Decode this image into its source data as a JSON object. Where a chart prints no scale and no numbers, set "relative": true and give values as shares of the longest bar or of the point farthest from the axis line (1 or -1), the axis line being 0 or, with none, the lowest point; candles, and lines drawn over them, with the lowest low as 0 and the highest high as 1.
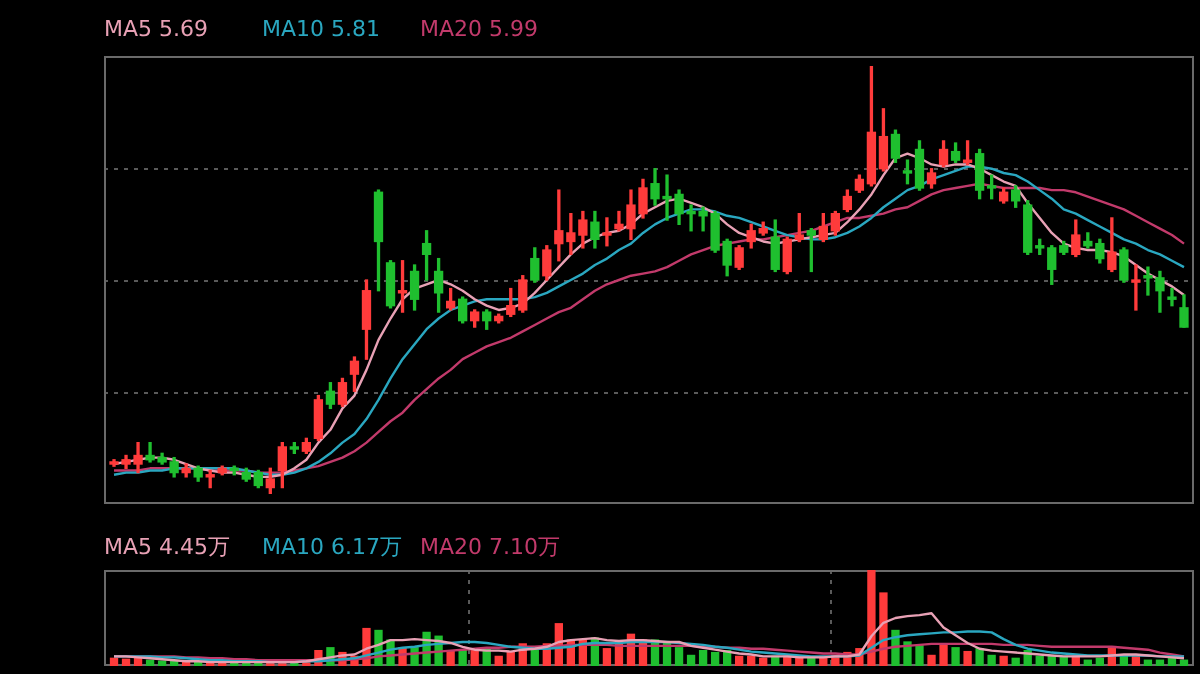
{
  "chart_data": [
    {
      "type": "candlestick",
      "relative": true,
      "grid": "y",
      "legend": "top left",
      "marker": "none",
      "categories": [
        null,
        null,
        null,
        null,
        null,
        null,
        null,
        null,
        null,
        null,
        null,
        null,
        null,
        null,
        null,
        null,
        null,
        null,
        null,
        null,
        null,
        null,
        null,
        null,
        null,
        null,
        null,
        null,
        null,
        null,
        null,
        null,
        null,
        null,
        null,
        null,
        null,
        null,
        null,
        null,
        null,
        null,
        null,
        null,
        null,
        null,
        null,
        null,
        null,
        null,
        null,
        null,
        null,
        null,
        null,
        null,
        null,
        null,
        null,
        null,
        null,
        null,
        null,
        null,
        null,
        null,
        null,
        null,
        null,
        null,
        null,
        null,
        null,
        null,
        null,
        null,
        null,
        null,
        null,
        null,
        null,
        null,
        null,
        null,
        null,
        null,
        null,
        null,
        null,
        null
      ],
      "ohlc": [
        [
          0.07,
          0.08,
          0.065,
          0.075
        ],
        [
          0.07,
          0.09,
          0.06,
          0.08
        ],
        [
          0.07,
          0.12,
          0.05,
          0.09
        ],
        [
          0.09,
          0.12,
          0.075,
          0.08
        ],
        [
          0.085,
          0.095,
          0.07,
          0.075
        ],
        [
          0.075,
          0.085,
          0.04,
          0.05
        ],
        [
          0.05,
          0.07,
          0.04,
          0.06
        ],
        [
          0.06,
          0.065,
          0.03,
          0.04
        ],
        [
          0.04,
          0.055,
          0.015,
          0.045
        ],
        [
          0.05,
          0.065,
          0.045,
          0.06
        ],
        [
          0.06,
          0.065,
          0.045,
          0.055
        ],
        [
          0.05,
          0.06,
          0.03,
          0.035
        ],
        [
          0.05,
          0.055,
          0.015,
          0.02
        ],
        [
          0.015,
          0.06,
          0,
          0.035
        ],
        [
          0.055,
          0.12,
          0.015,
          0.11
        ],
        [
          0.11,
          0.12,
          0.095,
          0.105
        ],
        [
          0.1,
          0.13,
          0.095,
          0.12
        ],
        [
          0.13,
          0.23,
          0.125,
          0.22
        ],
        [
          0.24,
          0.26,
          0.2,
          0.21
        ],
        [
          0.21,
          0.27,
          0.205,
          0.26
        ],
        [
          0.28,
          0.32,
          0.24,
          0.31
        ],
        [
          0.385,
          0.5,
          0.315,
          0.475
        ],
        [
          0.705,
          0.71,
          0.475,
          0.59
        ],
        [
          0.54,
          0.545,
          0.435,
          0.44
        ],
        [
          0.47,
          0.545,
          0.425,
          0.475
        ],
        [
          0.52,
          0.535,
          0.43,
          0.455
        ],
        [
          0.585,
          0.615,
          0.5,
          0.56
        ],
        [
          0.52,
          0.55,
          0.425,
          0.47
        ],
        [
          0.435,
          0.48,
          0.43,
          0.45
        ],
        [
          0.455,
          0.46,
          0.4,
          0.405
        ],
        [
          0.405,
          0.43,
          0.39,
          0.425
        ],
        [
          0.425,
          0.43,
          0.385,
          0.405
        ],
        [
          0.405,
          0.42,
          0.4,
          0.415
        ],
        [
          0.42,
          0.48,
          0.415,
          0.44
        ],
        [
          0.43,
          0.51,
          0.425,
          0.5
        ],
        [
          0.55,
          0.575,
          0.495,
          0.5
        ],
        [
          0.51,
          0.58,
          0.5,
          0.57
        ],
        [
          0.585,
          0.71,
          0.545,
          0.615
        ],
        [
          0.59,
          0.655,
          0.56,
          0.61
        ],
        [
          0.605,
          0.66,
          0.575,
          0.64
        ],
        [
          0.635,
          0.66,
          0.575,
          0.595
        ],
        [
          0.605,
          0.645,
          0.58,
          0.61
        ],
        [
          0.62,
          0.66,
          0.615,
          0.63
        ],
        [
          0.62,
          0.71,
          0.595,
          0.675
        ],
        [
          0.655,
          0.735,
          0.645,
          0.715
        ],
        [
          0.725,
          0.76,
          0.675,
          0.69
        ],
        [
          0.695,
          0.745,
          0.64,
          0.69
        ],
        [
          0.7,
          0.71,
          0.63,
          0.655
        ],
        [
          0.66,
          0.675,
          0.615,
          0.655
        ],
        [
          0.66,
          0.67,
          0.615,
          0.65
        ],
        [
          0.655,
          0.66,
          0.565,
          0.57
        ],
        [
          0.59,
          0.595,
          0.51,
          0.535
        ],
        [
          0.53,
          0.58,
          0.525,
          0.575
        ],
        [
          0.59,
          0.63,
          0.575,
          0.615
        ],
        [
          0.61,
          0.635,
          0.605,
          0.62
        ],
        [
          0.6,
          0.64,
          0.52,
          0.525
        ],
        [
          0.52,
          0.6,
          0.515,
          0.595
        ],
        [
          0.595,
          0.655,
          0.59,
          0.605
        ],
        [
          0.615,
          0.62,
          0.52,
          0.605
        ],
        [
          0.595,
          0.655,
          0.59,
          0.625
        ],
        [
          0.615,
          0.66,
          0.605,
          0.655
        ],
        [
          0.665,
          0.71,
          0.66,
          0.695
        ],
        [
          0.71,
          0.745,
          0.705,
          0.735
        ],
        [
          0.725,
          1,
          0.72,
          0.845
        ],
        [
          0.76,
          0.9,
          0.755,
          0.835
        ],
        [
          0.84,
          0.85,
          0.775,
          0.785
        ],
        [
          0.755,
          0.78,
          0.725,
          0.75
        ],
        [
          0.805,
          0.825,
          0.71,
          0.715
        ],
        [
          0.725,
          0.76,
          0.715,
          0.75
        ],
        [
          0.77,
          0.825,
          0.765,
          0.805
        ],
        [
          0.8,
          0.82,
          0.775,
          0.78
        ],
        [
          0.775,
          0.825,
          0.77,
          0.78
        ],
        [
          0.795,
          0.805,
          0.69,
          0.71
        ],
        [
          0.72,
          0.745,
          0.69,
          0.715
        ],
        [
          0.685,
          0.715,
          0.68,
          0.705
        ],
        [
          0.71,
          0.72,
          0.67,
          0.685
        ],
        [
          0.675,
          0.685,
          0.56,
          0.565
        ],
        [
          0.58,
          0.595,
          0.56,
          0.575
        ],
        [
          0.575,
          0.58,
          0.49,
          0.525
        ],
        [
          0.58,
          0.59,
          0.56,
          0.565
        ],
        [
          0.56,
          0.64,
          0.555,
          0.605
        ],
        [
          0.59,
          0.61,
          0.575,
          0.58
        ],
        [
          0.585,
          0.595,
          0.54,
          0.55
        ],
        [
          0.525,
          0.645,
          0.52,
          0.565
        ],
        [
          0.57,
          0.575,
          0.495,
          0.5
        ],
        [
          0.495,
          0.535,
          0.43,
          0.5
        ],
        [
          0.51,
          0.53,
          0.465,
          0.505
        ],
        [
          0.505,
          0.52,
          0.425,
          0.475
        ],
        [
          0.46,
          0.48,
          0.44,
          0.455
        ],
        [
          0.435,
          0.465,
          0.39,
          0.39
        ]
      ],
      "colors": [
        "#ff3b3b",
        "#ff3b3b",
        "#ff3b3b",
        "#1fbf2f",
        "#1fbf2f",
        "#1fbf2f",
        "#ff3b3b",
        "#1fbf2f",
        "#ff3b3b",
        "#ff3b3b",
        "#1fbf2f",
        "#1fbf2f",
        "#1fbf2f",
        "#ff3b3b",
        "#ff3b3b",
        "#1fbf2f",
        "#ff3b3b",
        "#ff3b3b",
        "#1fbf2f",
        "#ff3b3b",
        "#ff3b3b",
        "#ff3b3b",
        "#1fbf2f",
        "#1fbf2f",
        "#ff3b3b",
        "#1fbf2f",
        "#1fbf2f",
        "#1fbf2f",
        "#ff3b3b",
        "#1fbf2f",
        "#ff3b3b",
        "#1fbf2f",
        "#ff3b3b",
        "#ff3b3b",
        "#ff3b3b",
        "#1fbf2f",
        "#ff3b3b",
        "#ff3b3b",
        "#ff3b3b",
        "#ff3b3b",
        "#1fbf2f",
        "#ff3b3b",
        "#ff3b3b",
        "#ff3b3b",
        "#ff3b3b",
        "#1fbf2f",
        "#1fbf2f",
        "#1fbf2f",
        "#1fbf2f",
        "#1fbf2f",
        "#1fbf2f",
        "#1fbf2f",
        "#ff3b3b",
        "#ff3b3b",
        "#ff3b3b",
        "#1fbf2f",
        "#ff3b3b",
        "#ff3b3b",
        "#1fbf2f",
        "#ff3b3b",
        "#ff3b3b",
        "#ff3b3b",
        "#ff3b3b",
        "#ff3b3b",
        "#ff3b3b",
        "#1fbf2f",
        "#1fbf2f",
        "#1fbf2f",
        "#ff3b3b",
        "#ff3b3b",
        "#1fbf2f",
        "#ff3b3b",
        "#1fbf2f",
        "#1fbf2f",
        "#ff3b3b",
        "#1fbf2f",
        "#1fbf2f",
        "#1fbf2f",
        "#1fbf2f",
        "#1fbf2f",
        "#ff3b3b",
        "#1fbf2f",
        "#1fbf2f",
        "#ff3b3b",
        "#1fbf2f",
        "#ff3b3b",
        "#1fbf2f",
        "#1fbf2f",
        "#1fbf2f",
        "#1fbf2f"
      ],
      "series": [
        {
          "name": "MA5 5.69",
          "type": "line",
          "color": "#e8a1b5",
          "values": [
            0.07,
            0.075,
            0.08,
            0.085,
            0.085,
            0.08,
            0.07,
            0.06,
            0.055,
            0.05,
            0.05,
            0.045,
            0.04,
            0.04,
            0.045,
            0.06,
            0.08,
            0.12,
            0.15,
            0.2,
            0.23,
            0.29,
            0.36,
            0.41,
            0.455,
            0.48,
            0.49,
            0.5,
            0.49,
            0.475,
            0.455,
            0.44,
            0.43,
            0.435,
            0.445,
            0.47,
            0.5,
            0.53,
            0.56,
            0.585,
            0.6,
            0.61,
            0.615,
            0.63,
            0.655,
            0.67,
            0.685,
            0.69,
            0.68,
            0.67,
            0.655,
            0.63,
            0.61,
            0.6,
            0.59,
            0.585,
            0.59,
            0.595,
            0.6,
            0.605,
            0.61,
            0.635,
            0.665,
            0.7,
            0.745,
            0.785,
            0.795,
            0.785,
            0.77,
            0.765,
            0.77,
            0.77,
            0.76,
            0.745,
            0.73,
            0.72,
            0.68,
            0.645,
            0.61,
            0.585,
            0.575,
            0.57,
            0.57,
            0.565,
            0.555,
            0.535,
            0.515,
            0.5,
            0.485,
            0.465
          ]
        },
        {
          "name": "MA10 5.81",
          "type": "line",
          "color": "#2aa7c0",
          "values": [
            0.045,
            0.05,
            0.05,
            0.055,
            0.055,
            0.06,
            0.06,
            0.06,
            0.06,
            0.06,
            0.06,
            0.055,
            0.05,
            0.045,
            0.045,
            0.05,
            0.06,
            0.075,
            0.095,
            0.12,
            0.14,
            0.175,
            0.22,
            0.27,
            0.315,
            0.35,
            0.385,
            0.41,
            0.43,
            0.44,
            0.45,
            0.455,
            0.455,
            0.455,
            0.455,
            0.46,
            0.47,
            0.485,
            0.5,
            0.515,
            0.535,
            0.55,
            0.57,
            0.585,
            0.61,
            0.63,
            0.645,
            0.655,
            0.665,
            0.665,
            0.66,
            0.65,
            0.645,
            0.635,
            0.625,
            0.615,
            0.605,
            0.6,
            0.595,
            0.595,
            0.6,
            0.61,
            0.625,
            0.645,
            0.67,
            0.69,
            0.71,
            0.72,
            0.735,
            0.745,
            0.755,
            0.765,
            0.765,
            0.76,
            0.75,
            0.745,
            0.73,
            0.71,
            0.69,
            0.665,
            0.655,
            0.64,
            0.625,
            0.61,
            0.595,
            0.585,
            0.57,
            0.56,
            0.545,
            0.53
          ]
        },
        {
          "name": "MA20 5.99",
          "type": "line",
          "color": "#c23a6b",
          "values": [
            0.055,
            0.055,
            0.055,
            0.06,
            0.06,
            0.06,
            0.06,
            0.06,
            0.055,
            0.055,
            0.055,
            0.055,
            0.05,
            0.05,
            0.05,
            0.055,
            0.06,
            0.065,
            0.075,
            0.085,
            0.1,
            0.12,
            0.145,
            0.17,
            0.19,
            0.22,
            0.245,
            0.27,
            0.29,
            0.315,
            0.33,
            0.345,
            0.355,
            0.365,
            0.38,
            0.395,
            0.41,
            0.425,
            0.435,
            0.455,
            0.475,
            0.49,
            0.5,
            0.51,
            0.515,
            0.52,
            0.53,
            0.545,
            0.56,
            0.57,
            0.58,
            0.585,
            0.59,
            0.595,
            0.595,
            0.6,
            0.605,
            0.61,
            0.615,
            0.625,
            0.635,
            0.645,
            0.645,
            0.65,
            0.655,
            0.665,
            0.67,
            0.685,
            0.7,
            0.71,
            0.715,
            0.72,
            0.725,
            0.72,
            0.715,
            0.715,
            0.715,
            0.715,
            0.71,
            0.71,
            0.705,
            0.695,
            0.685,
            0.675,
            0.665,
            0.65,
            0.635,
            0.62,
            0.605,
            0.585
          ]
        }
      ]
    },
    {
      "type": "bar",
      "relative": true,
      "grid": "x",
      "legend": "top left",
      "marker": "none",
      "categories": [
        null,
        null,
        null,
        null,
        null,
        null,
        null,
        null,
        null,
        null,
        null,
        null,
        null,
        null,
        null,
        null,
        null,
        null,
        null,
        null,
        null,
        null,
        null,
        null,
        null,
        null,
        null,
        null,
        null,
        null,
        null,
        null,
        null,
        null,
        null,
        null,
        null,
        null,
        null,
        null,
        null,
        null,
        null,
        null,
        null,
        null,
        null,
        null,
        null,
        null,
        null,
        null,
        null,
        null,
        null,
        null,
        null,
        null,
        null,
        null,
        null,
        null,
        null,
        null,
        null,
        null,
        null,
        null,
        null,
        null,
        null,
        null,
        null,
        null,
        null,
        null,
        null,
        null,
        null,
        null,
        null,
        null,
        null,
        null,
        null,
        null,
        null,
        null,
        null,
        null
      ],
      "series": [
        {
          "type": "bar",
          "colors": [
            "#ff3b3b",
            "#ff3b3b",
            "#ff3b3b",
            "#1fbf2f",
            "#1fbf2f",
            "#1fbf2f",
            "#ff3b3b",
            "#1fbf2f",
            "#ff3b3b",
            "#ff3b3b",
            "#1fbf2f",
            "#1fbf2f",
            "#1fbf2f",
            "#ff3b3b",
            "#ff3b3b",
            "#1fbf2f",
            "#ff3b3b",
            "#ff3b3b",
            "#1fbf2f",
            "#ff3b3b",
            "#ff3b3b",
            "#ff3b3b",
            "#1fbf2f",
            "#1fbf2f",
            "#ff3b3b",
            "#1fbf2f",
            "#1fbf2f",
            "#1fbf2f",
            "#ff3b3b",
            "#1fbf2f",
            "#ff3b3b",
            "#1fbf2f",
            "#ff3b3b",
            "#ff3b3b",
            "#ff3b3b",
            "#1fbf2f",
            "#ff3b3b",
            "#ff3b3b",
            "#ff3b3b",
            "#ff3b3b",
            "#1fbf2f",
            "#ff3b3b",
            "#ff3b3b",
            "#ff3b3b",
            "#ff3b3b",
            "#1fbf2f",
            "#1fbf2f",
            "#1fbf2f",
            "#1fbf2f",
            "#1fbf2f",
            "#1fbf2f",
            "#1fbf2f",
            "#ff3b3b",
            "#ff3b3b",
            "#ff3b3b",
            "#1fbf2f",
            "#ff3b3b",
            "#ff3b3b",
            "#1fbf2f",
            "#ff3b3b",
            "#ff3b3b",
            "#ff3b3b",
            "#ff3b3b",
            "#ff3b3b",
            "#ff3b3b",
            "#1fbf2f",
            "#1fbf2f",
            "#1fbf2f",
            "#ff3b3b",
            "#ff3b3b",
            "#1fbf2f",
            "#ff3b3b",
            "#1fbf2f",
            "#1fbf2f",
            "#ff3b3b",
            "#1fbf2f",
            "#1fbf2f",
            "#1fbf2f",
            "#1fbf2f",
            "#1fbf2f",
            "#ff3b3b",
            "#1fbf2f",
            "#1fbf2f",
            "#ff3b3b",
            "#1fbf2f",
            "#ff3b3b",
            "#1fbf2f",
            "#1fbf2f",
            "#1fbf2f",
            "#1fbf2f"
          ],
          "values": [
            0.08,
            0.07,
            0.08,
            0.06,
            0.05,
            0.05,
            0.04,
            0.04,
            0.03,
            0.03,
            0.04,
            0.04,
            0.04,
            0.05,
            0.05,
            0.05,
            0.05,
            0.16,
            0.19,
            0.14,
            0.1,
            0.39,
            0.37,
            0.27,
            0.19,
            0.19,
            0.35,
            0.31,
            0.16,
            0.16,
            0.16,
            0.18,
            0.1,
            0.15,
            0.23,
            0.2,
            0.23,
            0.44,
            0.27,
            0.27,
            0.29,
            0.18,
            0.25,
            0.33,
            0.27,
            0.27,
            0.25,
            0.19,
            0.11,
            0.16,
            0.14,
            0.16,
            0.1,
            0.1,
            0.08,
            0.1,
            0.1,
            0.1,
            0.08,
            0.1,
            0.11,
            0.14,
            0.18,
            1,
            0.76,
            0.37,
            0.25,
            0.21,
            0.11,
            0.23,
            0.19,
            0.15,
            0.18,
            0.11,
            0.1,
            0.08,
            0.16,
            0.1,
            0.1,
            0.1,
            0.1,
            0.06,
            0.08,
            0.2,
            0.11,
            0.1,
            0.06,
            0.06,
            0.08,
            0.06
          ]
        },
        {
          "name": "MA5 4.45万",
          "type": "line",
          "color": "#e8a1b5",
          "values": [
            0.1,
            0.1,
            0.09,
            0.08,
            0.07,
            0.06,
            0.05,
            0.05,
            0.04,
            0.04,
            0.04,
            0.04,
            0.04,
            0.04,
            0.04,
            0.04,
            0.05,
            0.07,
            0.09,
            0.11,
            0.12,
            0.18,
            0.22,
            0.27,
            0.27,
            0.28,
            0.27,
            0.26,
            0.24,
            0.2,
            0.17,
            0.16,
            0.16,
            0.15,
            0.17,
            0.18,
            0.2,
            0.25,
            0.27,
            0.28,
            0.29,
            0.27,
            0.26,
            0.27,
            0.27,
            0.26,
            0.25,
            0.25,
            0.21,
            0.19,
            0.17,
            0.15,
            0.13,
            0.12,
            0.1,
            0.1,
            0.1,
            0.09,
            0.09,
            0.09,
            0.1,
            0.1,
            0.12,
            0.31,
            0.45,
            0.5,
            0.52,
            0.53,
            0.55,
            0.4,
            0.32,
            0.24,
            0.18,
            0.16,
            0.15,
            0.14,
            0.13,
            0.12,
            0.11,
            0.1,
            0.1,
            0.1,
            0.1,
            0.11,
            0.12,
            0.12,
            0.11,
            0.1,
            0.09,
            0.08
          ]
        },
        {
          "name": "MA10 6.17万",
          "type": "line",
          "color": "#2aa7c0",
          "values": [
            0.1,
            0.1,
            0.1,
            0.1,
            0.09,
            0.09,
            0.08,
            0.07,
            0.06,
            0.06,
            0.05,
            0.05,
            0.05,
            0.04,
            0.04,
            0.04,
            0.05,
            0.05,
            0.06,
            0.07,
            0.08,
            0.11,
            0.14,
            0.17,
            0.19,
            0.2,
            0.22,
            0.23,
            0.24,
            0.25,
            0.25,
            0.24,
            0.22,
            0.2,
            0.19,
            0.18,
            0.18,
            0.19,
            0.2,
            0.23,
            0.24,
            0.24,
            0.24,
            0.25,
            0.25,
            0.25,
            0.25,
            0.24,
            0.23,
            0.22,
            0.2,
            0.19,
            0.17,
            0.15,
            0.14,
            0.13,
            0.12,
            0.11,
            0.1,
            0.1,
            0.1,
            0.1,
            0.11,
            0.19,
            0.27,
            0.3,
            0.32,
            0.33,
            0.34,
            0.35,
            0.35,
            0.36,
            0.36,
            0.35,
            0.28,
            0.22,
            0.18,
            0.16,
            0.14,
            0.13,
            0.12,
            0.11,
            0.11,
            0.11,
            0.11,
            0.11,
            0.11,
            0.1,
            0.1,
            0.1
          ]
        },
        {
          "name": "MA20 7.10万",
          "type": "line",
          "color": "#c23a6b",
          "values": [
            0.1,
            0.1,
            0.1,
            0.1,
            0.1,
            0.1,
            0.09,
            0.09,
            0.08,
            0.08,
            0.07,
            0.07,
            0.06,
            0.06,
            0.06,
            0.06,
            0.06,
            0.06,
            0.06,
            0.06,
            0.07,
            0.08,
            0.1,
            0.11,
            0.12,
            0.13,
            0.14,
            0.15,
            0.16,
            0.17,
            0.18,
            0.19,
            0.19,
            0.2,
            0.2,
            0.2,
            0.21,
            0.21,
            0.22,
            0.22,
            0.22,
            0.22,
            0.21,
            0.21,
            0.21,
            0.21,
            0.21,
            0.21,
            0.21,
            0.2,
            0.2,
            0.19,
            0.19,
            0.18,
            0.18,
            0.17,
            0.16,
            0.15,
            0.14,
            0.13,
            0.13,
            0.12,
            0.12,
            0.15,
            0.18,
            0.2,
            0.21,
            0.22,
            0.23,
            0.23,
            0.23,
            0.23,
            0.23,
            0.23,
            0.22,
            0.22,
            0.22,
            0.21,
            0.2,
            0.2,
            0.2,
            0.2,
            0.2,
            0.2,
            0.19,
            0.18,
            0.17,
            0.14,
            0.12,
            0.1
          ]
        }
      ]
    }
  ]
}
